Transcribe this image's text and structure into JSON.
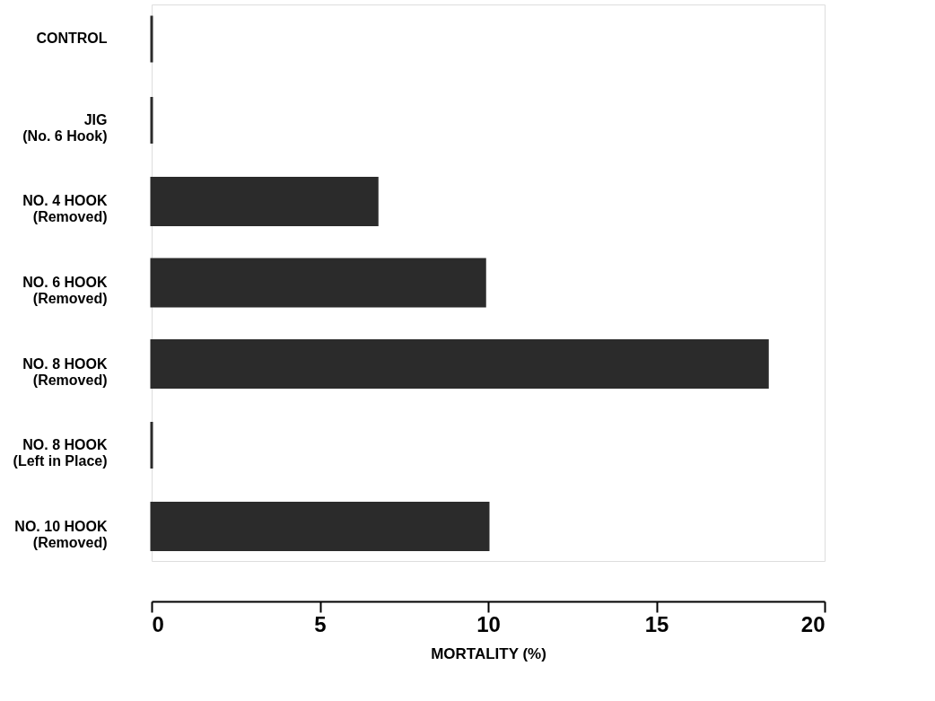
{
  "chart_data": {
    "type": "bar",
    "orientation": "horizontal",
    "xlabel": "MORTALITY  (%)",
    "categories": [
      "CONTROL",
      "JIG\n(No.  6 Hook)",
      "NO.  4  HOOK\n(Removed)",
      "NO.  6  HOOK\n(Removed)",
      "NO.  8  HOOK\n(Removed)",
      "NO.  8  HOOK\n(Left  in  Place)",
      "NO.  10  HOOK\n(Removed)"
    ],
    "values": [
      0,
      0,
      6.7,
      9.9,
      18.3,
      0,
      10.0
    ],
    "color": "#2b2b2b",
    "xlim": [
      0,
      20
    ],
    "xticks": [
      0,
      5,
      10,
      15,
      20
    ],
    "grid": false
  }
}
